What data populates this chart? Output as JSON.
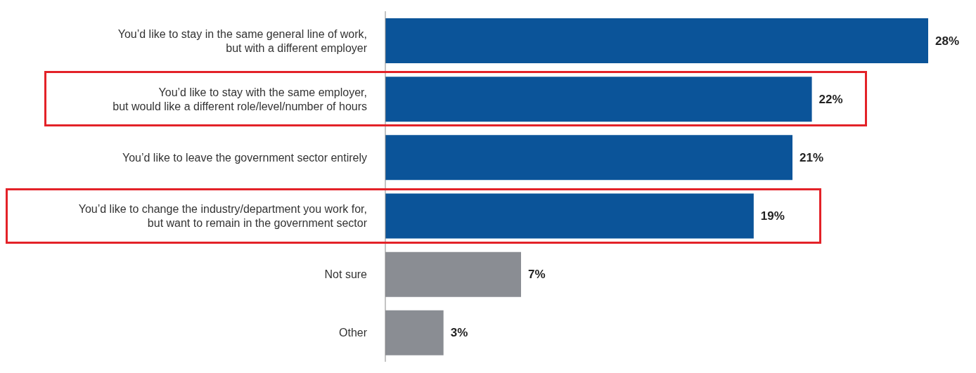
{
  "chart_data": {
    "type": "bar",
    "orientation": "horizontal",
    "categories": [
      "You’d like to stay in the same general line of work, but with a different employer",
      "You’d like to stay with the same employer, but would like a different role/level/number of hours",
      "You’d like to leave the government sector entirely",
      "You’d like to change the industry/department you work for, but want to remain in the government sector",
      "Not sure",
      "Other"
    ],
    "values": [
      28,
      22,
      21,
      19,
      7,
      3
    ],
    "colors": [
      "#0b5499",
      "#0b5499",
      "#0b5499",
      "#0b5499",
      "#8a8d93",
      "#8a8d93"
    ],
    "value_labels": [
      "28%",
      "22%",
      "21%",
      "19%",
      "7%",
      "3%"
    ]
  }
}
